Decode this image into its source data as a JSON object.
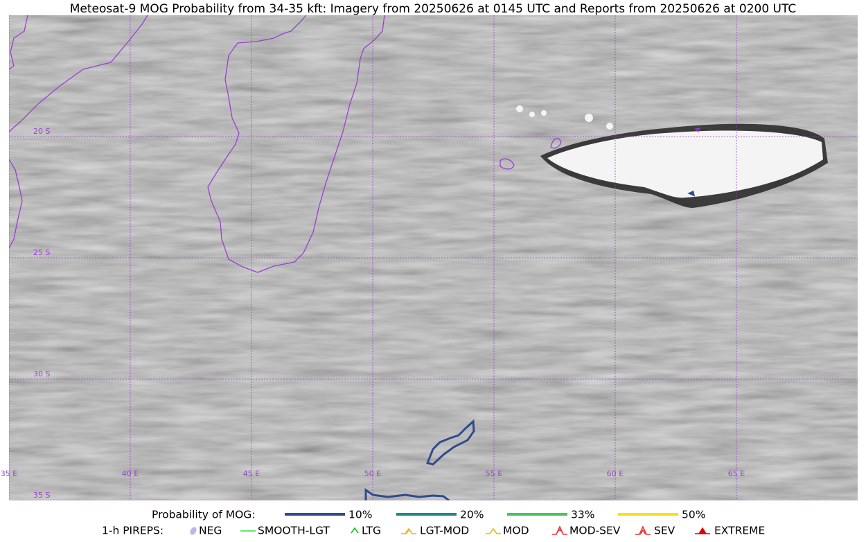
{
  "title": "Meteosat-9 MOG Probability from 34-35 kft: Imagery from 20250626 at 0145 UTC and Reports from 20250626 at 0200 UTC",
  "map": {
    "lon_labels": [
      "35 E",
      "40 E",
      "45 E",
      "50 E",
      "55 E",
      "60 E",
      "65 E"
    ],
    "lat_labels": [
      "20 S",
      "25 S",
      "30 S",
      "35 S"
    ]
  },
  "legend": {
    "probability": {
      "label": "Probability of MOG:",
      "items": [
        {
          "label": "10%",
          "color": "#2f4b8c"
        },
        {
          "label": "20%",
          "color": "#1e8a84"
        },
        {
          "label": "33%",
          "color": "#46c45a"
        },
        {
          "label": "50%",
          "color": "#f7e01a"
        }
      ]
    },
    "pireps": {
      "label": "1-h PIREPS:",
      "items": [
        {
          "label": "NEG",
          "color": "#b8b8f0"
        },
        {
          "label": "SMOOTH-LGT",
          "color": "#33dd33"
        },
        {
          "label": "LTG",
          "color": "#00cc00"
        },
        {
          "label": "LGT-MOD",
          "color": "#f0b020"
        },
        {
          "label": "MOD",
          "color": "#f0b020"
        },
        {
          "label": "MOD-SEV",
          "color": "#ee3333"
        },
        {
          "label": "SEV",
          "color": "#ee3333"
        },
        {
          "label": "EXTREME",
          "color": "#dd0000"
        }
      ]
    }
  }
}
